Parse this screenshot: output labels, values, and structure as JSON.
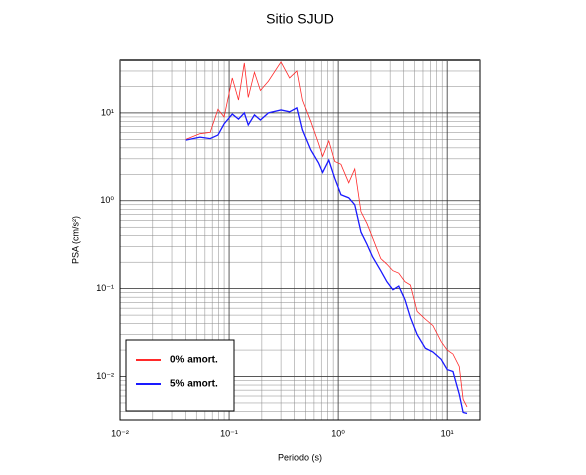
{
  "chart_data": {
    "type": "line",
    "title": "Sitio SJUD",
    "x_label": "Periodo (s)",
    "y_label": "PSA (cm/s²)",
    "x_scale": "log",
    "y_scale": "log",
    "grid": true,
    "minor_grid": true,
    "legend": "lower left",
    "xlim": [
      0.01,
      20
    ],
    "ylim": [
      0.0032,
      40
    ],
    "xticks": [
      {
        "value": 0.01,
        "label": "10⁻²"
      },
      {
        "value": 0.1,
        "label": "10⁻¹"
      },
      {
        "value": 1,
        "label": "10⁰"
      },
      {
        "value": 10,
        "label": "10¹"
      }
    ],
    "yticks": [
      {
        "value": 0.01,
        "label": "10⁻²"
      },
      {
        "value": 0.1,
        "label": "10⁻¹"
      },
      {
        "value": 1,
        "label": "10⁰"
      },
      {
        "value": 10,
        "label": "10¹"
      }
    ],
    "x": [
      0.04,
      0.054,
      0.067,
      0.079,
      0.09,
      0.107,
      0.122,
      0.138,
      0.15,
      0.171,
      0.194,
      0.23,
      0.3,
      0.36,
      0.42,
      0.47,
      0.56,
      0.66,
      0.72,
      0.82,
      0.93,
      1.06,
      1.25,
      1.42,
      1.62,
      1.84,
      2.07,
      2.46,
      2.8,
      3.18,
      3.6,
      4.1,
      4.6,
      5.3,
      6.3,
      7.4,
      8.8,
      10,
      11.3,
      12.9,
      14.0,
      15.2
    ],
    "series": [
      {
        "name": "0% amort.",
        "color": "#ff2a2a",
        "values": [
          5.0,
          5.8,
          6.0,
          11,
          9,
          25,
          14,
          37,
          15,
          29,
          18,
          23,
          38,
          25,
          30,
          14,
          8,
          4.5,
          3.2,
          4.8,
          2.8,
          2.6,
          1.6,
          2.3,
          0.75,
          0.55,
          0.38,
          0.22,
          0.19,
          0.16,
          0.15,
          0.12,
          0.11,
          0.055,
          0.045,
          0.038,
          0.025,
          0.02,
          0.018,
          0.013,
          0.0055,
          0.0045
        ]
      },
      {
        "name": "5% amort.",
        "color": "#1a1aff",
        "values": [
          4.9,
          5.3,
          5.1,
          5.6,
          7.5,
          9.7,
          8.5,
          10,
          7.3,
          9.5,
          8.3,
          10,
          10.8,
          10.3,
          11.4,
          6.4,
          3.8,
          2.7,
          2.1,
          2.9,
          1.8,
          1.17,
          1.08,
          0.9,
          0.44,
          0.32,
          0.23,
          0.16,
          0.12,
          0.097,
          0.107,
          0.075,
          0.047,
          0.03,
          0.021,
          0.019,
          0.0157,
          0.012,
          0.0114,
          0.0063,
          0.0039,
          0.0038
        ]
      }
    ]
  }
}
